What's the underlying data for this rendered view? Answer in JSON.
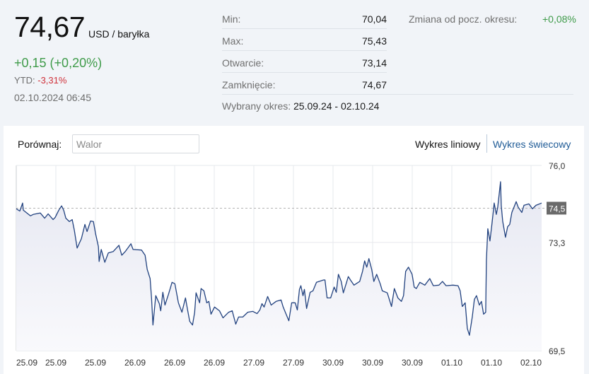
{
  "header": {
    "price": "74,67",
    "unit": "USD / baryłka",
    "change": "+0,15 (+0,20%)",
    "ytd_label": "YTD:",
    "ytd_value": "-3,31%",
    "datetime": "02.10.2024 06:45"
  },
  "stats": {
    "rows": [
      {
        "label": "Min:",
        "value": "70,04"
      },
      {
        "label": "Max:",
        "value": "75,43"
      },
      {
        "label": "Otwarcie:",
        "value": "73,14"
      },
      {
        "label": "Zamknięcie:",
        "value": "74,67"
      }
    ],
    "period_label": "Wybrany okres:",
    "period_value": "25.09.24 - 02.10.24",
    "change_label": "Zmiana od pocz. okresu:",
    "change_value": "+0,08%"
  },
  "toolbar": {
    "compare_label": "Porównaj:",
    "compare_placeholder": "Walor",
    "compare_value": "",
    "tab_line": "Wykres liniowy",
    "tab_candle": "Wykres świecowy"
  },
  "colors": {
    "line": "#22427f",
    "fill_top": "#e6e8f2",
    "fill_bottom": "#f9f9fc",
    "grid": "#e6e8ec",
    "positive": "#3f9b4a",
    "negative": "#d0323b",
    "link": "#1f5b96",
    "badge": "#6a6a6a"
  },
  "chart_data": {
    "type": "area",
    "title": "",
    "xlabel": "",
    "ylabel": "USD / baryłka",
    "ylim": [
      69.5,
      76.0
    ],
    "grid": true,
    "y_ticks": [
      {
        "value": 76.0,
        "label": "76,0"
      },
      {
        "value": 73.3,
        "label": "73,3"
      },
      {
        "value": 69.5,
        "label": "69,5"
      }
    ],
    "reference_line": {
      "value": 74.5,
      "label": "74,5"
    },
    "x_tick_labels": [
      "25.09",
      "25.09",
      "25.09",
      "26.09",
      "26.09",
      "26.09",
      "27.09",
      "27.09",
      "30.09",
      "30.09",
      "30.09",
      "01.10",
      "01.10",
      "02.10"
    ],
    "x_range": [
      0,
      742
    ],
    "points": [
      [
        0,
        74.48
      ],
      [
        5,
        74.4
      ],
      [
        9,
        74.68
      ],
      [
        10,
        74.43
      ],
      [
        14,
        74.35
      ],
      [
        20,
        74.23
      ],
      [
        24,
        74.28
      ],
      [
        34,
        74.33
      ],
      [
        40,
        74.15
      ],
      [
        45,
        74.3
      ],
      [
        52,
        74.1
      ],
      [
        55,
        74.18
      ],
      [
        60,
        74.43
      ],
      [
        64,
        74.58
      ],
      [
        67,
        74.43
      ],
      [
        70,
        74.15
      ],
      [
        75,
        74.03
      ],
      [
        79,
        74.1
      ],
      [
        82,
        73.73
      ],
      [
        86,
        73.1
      ],
      [
        92,
        73.43
      ],
      [
        97,
        73.93
      ],
      [
        100,
        73.68
      ],
      [
        105,
        74.05
      ],
      [
        109,
        74.03
      ],
      [
        112,
        73.6
      ],
      [
        116,
        73.15
      ],
      [
        117,
        72.63
      ],
      [
        120,
        73.05
      ],
      [
        125,
        72.6
      ],
      [
        130,
        72.93
      ],
      [
        137,
        72.98
      ],
      [
        145,
        73.2
      ],
      [
        149,
        72.85
      ],
      [
        154,
        72.98
      ],
      [
        162,
        73.25
      ],
      [
        165,
        73.05
      ],
      [
        177,
        73.03
      ],
      [
        182,
        72.85
      ],
      [
        185,
        72.35
      ],
      [
        189,
        72.03
      ],
      [
        191,
        71.35
      ],
      [
        193,
        70.4
      ],
      [
        197,
        71.43
      ],
      [
        202,
        71.15
      ],
      [
        204,
        70.9
      ],
      [
        207,
        71.55
      ],
      [
        210,
        71.1
      ],
      [
        215,
        71.48
      ],
      [
        220,
        71.9
      ],
      [
        224,
        71.85
      ],
      [
        229,
        71.18
      ],
      [
        234,
        70.85
      ],
      [
        239,
        71.35
      ],
      [
        242,
        70.93
      ],
      [
        245,
        70.53
      ],
      [
        249,
        70.4
      ],
      [
        252,
        70.85
      ],
      [
        254,
        71.53
      ],
      [
        259,
        71.18
      ],
      [
        261,
        71.68
      ],
      [
        265,
        71.6
      ],
      [
        269,
        71.18
      ],
      [
        272,
        71.23
      ],
      [
        275,
        70.78
      ],
      [
        280,
        71.03
      ],
      [
        287,
        70.9
      ],
      [
        292,
        70.65
      ],
      [
        300,
        70.85
      ],
      [
        305,
        70.9
      ],
      [
        310,
        70.43
      ],
      [
        314,
        70.68
      ],
      [
        320,
        70.68
      ],
      [
        327,
        70.85
      ],
      [
        334,
        70.88
      ],
      [
        340,
        70.8
      ],
      [
        344,
        70.93
      ],
      [
        347,
        71.15
      ],
      [
        350,
        71.03
      ],
      [
        355,
        71.4
      ],
      [
        360,
        71.1
      ],
      [
        367,
        71.23
      ],
      [
        374,
        71.28
      ],
      [
        377,
        71.03
      ],
      [
        380,
        70.85
      ],
      [
        385,
        70.55
      ],
      [
        389,
        71.18
      ],
      [
        394,
        71.18
      ],
      [
        397,
        70.93
      ],
      [
        400,
        71.65
      ],
      [
        402,
        71.78
      ],
      [
        405,
        71.43
      ],
      [
        407,
        71.65
      ],
      [
        410,
        70.98
      ],
      [
        415,
        71.55
      ],
      [
        419,
        71.6
      ],
      [
        424,
        71.9
      ],
      [
        434,
        71.98
      ],
      [
        436,
        71.98
      ],
      [
        439,
        71.35
      ],
      [
        444,
        71.35
      ],
      [
        449,
        71.73
      ],
      [
        452,
        71.55
      ],
      [
        455,
        72.18
      ],
      [
        459,
        71.93
      ],
      [
        462,
        71.53
      ],
      [
        469,
        72.1
      ],
      [
        472,
        71.98
      ],
      [
        477,
        71.8
      ],
      [
        485,
        71.93
      ],
      [
        489,
        72.28
      ],
      [
        492,
        72.65
      ],
      [
        495,
        72.43
      ],
      [
        498,
        72.73
      ],
      [
        502,
        72.35
      ],
      [
        505,
        71.93
      ],
      [
        509,
        72.18
      ],
      [
        514,
        71.85
      ],
      [
        517,
        71.6
      ],
      [
        524,
        71.53
      ],
      [
        530,
        71.05
      ],
      [
        534,
        71.68
      ],
      [
        539,
        71.35
      ],
      [
        544,
        71.23
      ],
      [
        547,
        71.43
      ],
      [
        550,
        72.28
      ],
      [
        554,
        72.43
      ],
      [
        559,
        72.18
      ],
      [
        562,
        71.73
      ],
      [
        565,
        71.68
      ],
      [
        570,
        71.9
      ],
      [
        577,
        71.8
      ],
      [
        584,
        72.03
      ],
      [
        589,
        71.78
      ],
      [
        597,
        71.8
      ],
      [
        602,
        71.93
      ],
      [
        607,
        71.78
      ],
      [
        617,
        71.8
      ],
      [
        624,
        71.78
      ],
      [
        627,
        71.6
      ],
      [
        630,
        71.05
      ],
      [
        634,
        71.18
      ],
      [
        637,
        70.28
      ],
      [
        640,
        70.04
      ],
      [
        644,
        70.68
      ],
      [
        647,
        71.3
      ],
      [
        650,
        71.43
      ],
      [
        654,
        71.1
      ],
      [
        657,
        71.23
      ],
      [
        660,
        70.78
      ],
      [
        663,
        70.85
      ],
      [
        664,
        72.68
      ],
      [
        666,
        73.78
      ],
      [
        669,
        73.35
      ],
      [
        672,
        73.98
      ],
      [
        675,
        74.68
      ],
      [
        678,
        74.28
      ],
      [
        680,
        74.53
      ],
      [
        684,
        75.43
      ],
      [
        685,
        74.6
      ],
      [
        687,
        74.05
      ],
      [
        691,
        73.48
      ],
      [
        694,
        73.85
      ],
      [
        697,
        73.93
      ],
      [
        700,
        74.35
      ],
      [
        706,
        74.73
      ],
      [
        709,
        74.53
      ],
      [
        714,
        74.35
      ],
      [
        717,
        74.6
      ],
      [
        724,
        74.65
      ],
      [
        729,
        74.48
      ],
      [
        734,
        74.6
      ],
      [
        742,
        74.68
      ]
    ]
  }
}
